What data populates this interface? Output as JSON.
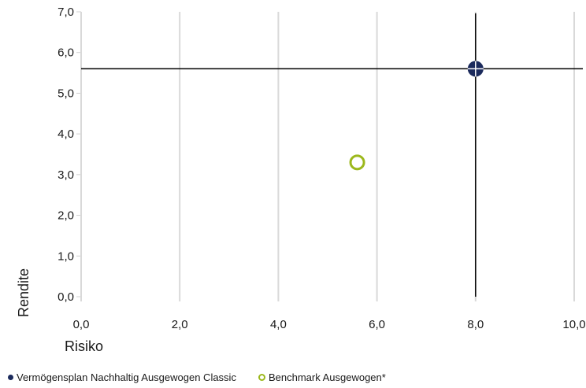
{
  "chart_data": {
    "type": "scatter",
    "xlabel": "Risiko",
    "ylabel": "Rendite",
    "xlim": [
      0,
      10
    ],
    "ylim": [
      0,
      7
    ],
    "x_ticks": [
      "0,0",
      "2,0",
      "4,0",
      "6,0",
      "8,0",
      "10,0"
    ],
    "y_ticks": [
      "0,0",
      "1,0",
      "2,0",
      "3,0",
      "4,0",
      "5,0",
      "6,0",
      "7,0"
    ],
    "grid": "vertical",
    "legend_position": "bottom",
    "series": [
      {
        "name": "Vermögensplan Nachhaltig Ausgewogen Classic",
        "color": "#1b2a5c",
        "marker": "filled-circle-crosshair",
        "points": [
          {
            "x": 8.0,
            "y": 5.6
          }
        ]
      },
      {
        "name": "Benchmark Ausgewogen*",
        "color": "#9cb81c",
        "marker": "hollow-circle",
        "points": [
          {
            "x": 5.6,
            "y": 3.3
          }
        ]
      }
    ]
  }
}
